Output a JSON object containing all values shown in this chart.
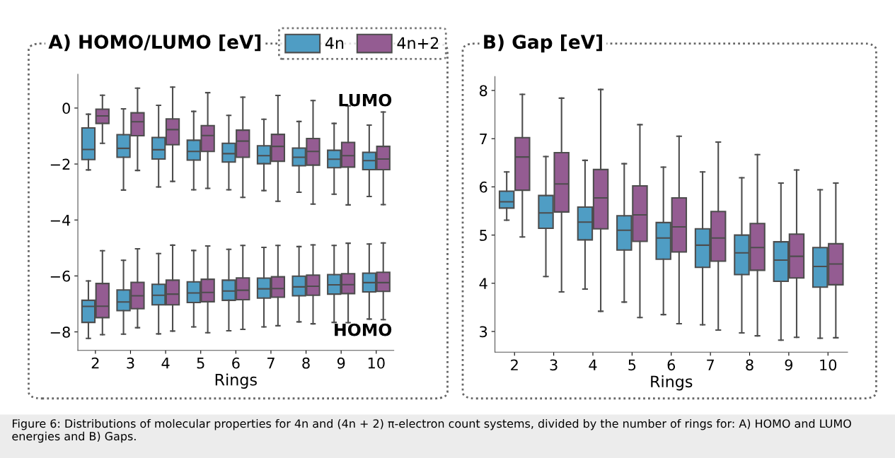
{
  "chart_data": [
    {
      "type": "box",
      "title": "A) HOMO/LUMO [eV]",
      "xlabel": "Rings",
      "categories": [
        "2",
        "3",
        "4",
        "5",
        "6",
        "7",
        "8",
        "9",
        "10"
      ],
      "ylim": [
        -8.66,
        1.21
      ],
      "yticks": [
        0,
        {
          "value": -2,
          "label": "−2"
        },
        {
          "value": -4,
          "label": "−4"
        },
        {
          "value": -6,
          "label": "−6"
        },
        {
          "value": -8,
          "label": "−8"
        }
      ],
      "grid": false,
      "legend": "top",
      "annotations": [
        "LUMO",
        "HOMO"
      ],
      "series": [
        {
          "name": "4n",
          "color": "#4f9dc4",
          "boxes": [
            {
              "low": -2.21,
              "q1": -1.84,
              "median": -1.48,
              "q3": -0.71,
              "high": -0.22
            },
            {
              "low": -2.93,
              "q1": -1.76,
              "median": -1.44,
              "q3": -0.95,
              "high": -0.03
            },
            {
              "low": -2.82,
              "q1": -1.82,
              "median": -1.49,
              "q3": -1.05,
              "high": 0.1
            },
            {
              "low": -2.92,
              "q1": -1.86,
              "median": -1.55,
              "q3": -1.15,
              "high": -0.12
            },
            {
              "low": -2.92,
              "q1": -1.93,
              "median": -1.63,
              "q3": -1.26,
              "high": -0.26
            },
            {
              "low": -2.95,
              "q1": -1.99,
              "median": -1.7,
              "q3": -1.35,
              "high": -0.4
            },
            {
              "low": -3.01,
              "q1": -2.06,
              "median": -1.76,
              "q3": -1.43,
              "high": -0.48
            },
            {
              "low": -3.08,
              "q1": -2.13,
              "median": -1.83,
              "q3": -1.51,
              "high": -0.55
            },
            {
              "low": -3.16,
              "q1": -2.2,
              "median": -1.88,
              "q3": -1.58,
              "high": -0.61
            }
          ]
        },
        {
          "name": "4n+2",
          "color": "#945c92",
          "boxes": [
            {
              "low": -1.26,
              "q1": -0.55,
              "median": -0.28,
              "q3": -0.04,
              "high": 0.46
            },
            {
              "low": -2.23,
              "q1": -0.99,
              "median": -0.49,
              "q3": -0.17,
              "high": 0.71
            },
            {
              "low": -2.62,
              "q1": -1.31,
              "median": -0.77,
              "q3": -0.39,
              "high": 0.75
            },
            {
              "low": -2.87,
              "q1": -1.55,
              "median": -0.98,
              "q3": -0.63,
              "high": 0.55
            },
            {
              "low": -3.19,
              "q1": -1.76,
              "median": -1.18,
              "q3": -0.79,
              "high": 0.39
            },
            {
              "low": -3.33,
              "q1": -1.9,
              "median": -1.37,
              "q3": -0.94,
              "high": 0.45
            },
            {
              "low": -3.43,
              "q1": -2.04,
              "median": -1.55,
              "q3": -1.09,
              "high": 0.27
            },
            {
              "low": -3.46,
              "q1": -2.11,
              "median": -1.7,
              "q3": -1.23,
              "high": 0.08
            },
            {
              "low": -3.45,
              "q1": -2.2,
              "median": -1.82,
              "q3": -1.37,
              "high": -0.14
            }
          ]
        },
        {
          "color": "#4f9dc4",
          "boxes": [
            {
              "low": -8.23,
              "q1": -7.66,
              "median": -7.09,
              "q3": -6.87,
              "high": -6.18
            },
            {
              "low": -8.08,
              "q1": -7.24,
              "median": -6.93,
              "q3": -6.5,
              "high": -5.44
            },
            {
              "low": -8.07,
              "q1": -7.03,
              "median": -6.69,
              "q3": -6.3,
              "high": -5.2
            },
            {
              "low": -7.82,
              "q1": -6.95,
              "median": -6.61,
              "q3": -6.21,
              "high": -5.09
            },
            {
              "low": -7.96,
              "q1": -6.87,
              "median": -6.54,
              "q3": -6.15,
              "high": -5.05
            },
            {
              "low": -7.82,
              "q1": -6.79,
              "median": -6.46,
              "q3": -6.08,
              "high": -4.98
            },
            {
              "low": -7.64,
              "q1": -6.71,
              "median": -6.39,
              "q3": -6.01,
              "high": -4.95
            },
            {
              "low": -7.66,
              "q1": -6.65,
              "median": -6.32,
              "q3": -5.95,
              "high": -4.91
            },
            {
              "low": -7.54,
              "q1": -6.57,
              "median": -6.24,
              "q3": -5.9,
              "high": -4.86
            }
          ]
        },
        {
          "color": "#945c92",
          "boxes": [
            {
              "low": -8.1,
              "q1": -7.49,
              "median": -7.08,
              "q3": -6.27,
              "high": -5.1
            },
            {
              "low": -7.85,
              "q1": -7.17,
              "median": -6.71,
              "q3": -6.23,
              "high": -5.03
            },
            {
              "low": -7.97,
              "q1": -7.03,
              "median": -6.65,
              "q3": -6.15,
              "high": -4.9
            },
            {
              "low": -8.03,
              "q1": -6.92,
              "median": -6.59,
              "q3": -6.12,
              "high": -4.93
            },
            {
              "low": -7.91,
              "q1": -6.85,
              "median": -6.51,
              "q3": -6.07,
              "high": -4.91
            },
            {
              "low": -7.78,
              "q1": -6.76,
              "median": -6.45,
              "q3": -6.03,
              "high": -4.91
            },
            {
              "low": -7.71,
              "q1": -6.69,
              "median": -6.37,
              "q3": -5.97,
              "high": -4.89
            },
            {
              "low": -7.67,
              "q1": -6.63,
              "median": -6.31,
              "q3": -5.92,
              "high": -4.83
            },
            {
              "low": -7.56,
              "q1": -6.55,
              "median": -6.24,
              "q3": -5.87,
              "high": -4.82
            }
          ]
        }
      ]
    },
    {
      "type": "box",
      "title": "B) Gap [eV]",
      "xlabel": "Rings",
      "categories": [
        "2",
        "3",
        "4",
        "5",
        "6",
        "7",
        "8",
        "9",
        "10"
      ],
      "ylim": [
        2.57,
        8.29
      ],
      "yticks": [
        3,
        4,
        5,
        6,
        7,
        8
      ],
      "grid": false,
      "annotations": [
        "Figure 6: Distributions of molecular properties for 4n and (4n + 2) π-electron count systems, divided by the number of rings for: A) HOMO and LUMO energies and B) Gaps."
      ],
      "series": [
        {
          "color": "#4f9dc4",
          "boxes": [
            {
              "low": 5.31,
              "q1": 5.56,
              "median": 5.69,
              "q3": 5.91,
              "high": 6.31
            },
            {
              "low": 4.14,
              "q1": 5.14,
              "median": 5.46,
              "q3": 5.82,
              "high": 6.63
            },
            {
              "low": 3.88,
              "q1": 4.9,
              "median": 5.27,
              "q3": 5.58,
              "high": 6.55
            },
            {
              "low": 3.61,
              "q1": 4.69,
              "median": 5.1,
              "q3": 5.4,
              "high": 6.48
            },
            {
              "low": 3.35,
              "q1": 4.5,
              "median": 4.94,
              "q3": 5.26,
              "high": 6.41
            },
            {
              "low": 3.14,
              "q1": 4.33,
              "median": 4.79,
              "q3": 5.13,
              "high": 6.31
            },
            {
              "low": 2.97,
              "q1": 4.18,
              "median": 4.63,
              "q3": 5.0,
              "high": 6.19
            },
            {
              "low": 2.82,
              "q1": 4.04,
              "median": 4.48,
              "q3": 4.86,
              "high": 6.08
            },
            {
              "low": 2.86,
              "q1": 3.92,
              "median": 4.35,
              "q3": 4.74,
              "high": 5.94
            }
          ]
        },
        {
          "color": "#945c92",
          "boxes": [
            {
              "low": 4.96,
              "q1": 5.93,
              "median": 6.62,
              "q3": 7.02,
              "high": 7.92
            },
            {
              "low": 3.82,
              "q1": 5.48,
              "median": 6.06,
              "q3": 6.71,
              "high": 7.84
            },
            {
              "low": 3.42,
              "q1": 5.13,
              "median": 5.77,
              "q3": 6.36,
              "high": 8.02
            },
            {
              "low": 3.29,
              "q1": 4.87,
              "median": 5.42,
              "q3": 6.02,
              "high": 7.29
            },
            {
              "low": 3.16,
              "q1": 4.65,
              "median": 5.17,
              "q3": 5.77,
              "high": 7.05
            },
            {
              "low": 3.03,
              "q1": 4.46,
              "median": 4.94,
              "q3": 5.49,
              "high": 6.93
            },
            {
              "low": 2.91,
              "q1": 4.27,
              "median": 4.74,
              "q3": 5.24,
              "high": 6.67
            },
            {
              "low": 2.88,
              "q1": 4.11,
              "median": 4.56,
              "q3": 5.02,
              "high": 6.35
            },
            {
              "low": 2.87,
              "q1": 3.97,
              "median": 4.4,
              "q3": 4.82,
              "high": 6.08
            }
          ]
        }
      ]
    }
  ]
}
